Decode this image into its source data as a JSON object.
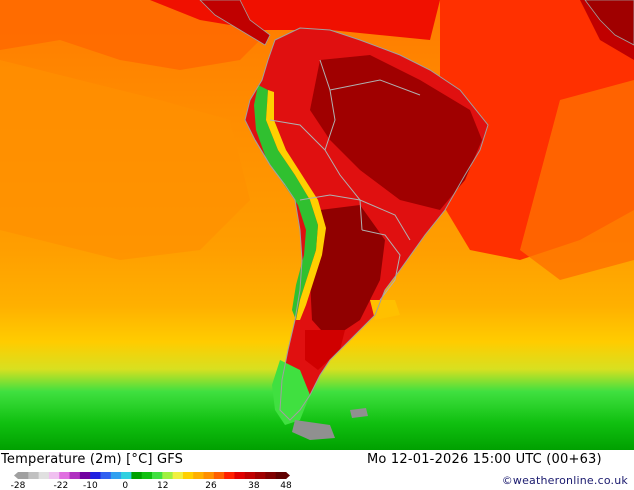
{
  "map": {
    "title": "Temperature (2m) [°C] GFS",
    "datetime": "Mo 12-01-2026 15:00 UTC (00+63)",
    "credit": "©weatheronline.co.uk"
  },
  "legend": {
    "ticks": [
      "-28",
      "-22",
      "-10",
      "0",
      "12",
      "26",
      "38",
      "48"
    ],
    "colors": [
      "#a0a0a0",
      "#c0c0c0",
      "#e0e0e0",
      "#f0c0f0",
      "#e070e0",
      "#b030c0",
      "#7000a0",
      "#2020e0",
      "#3060f0",
      "#30a0f0",
      "#30d0e0",
      "#00a000",
      "#10c010",
      "#40e040",
      "#a0f040",
      "#f0f040",
      "#ffd000",
      "#ffb000",
      "#ff9000",
      "#ff6000",
      "#ff2000",
      "#e00000",
      "#c00000",
      "#a00000",
      "#800000",
      "#600000"
    ]
  },
  "colors": {
    "ocean_warm": "#ff9a00",
    "ocean_hot": "#ff6a00",
    "land_hot": "#e01010",
    "land_very_hot": "#a00000",
    "andes_cool": "#30c030",
    "south_green": "#10d010",
    "border": "#b0b0b0"
  }
}
